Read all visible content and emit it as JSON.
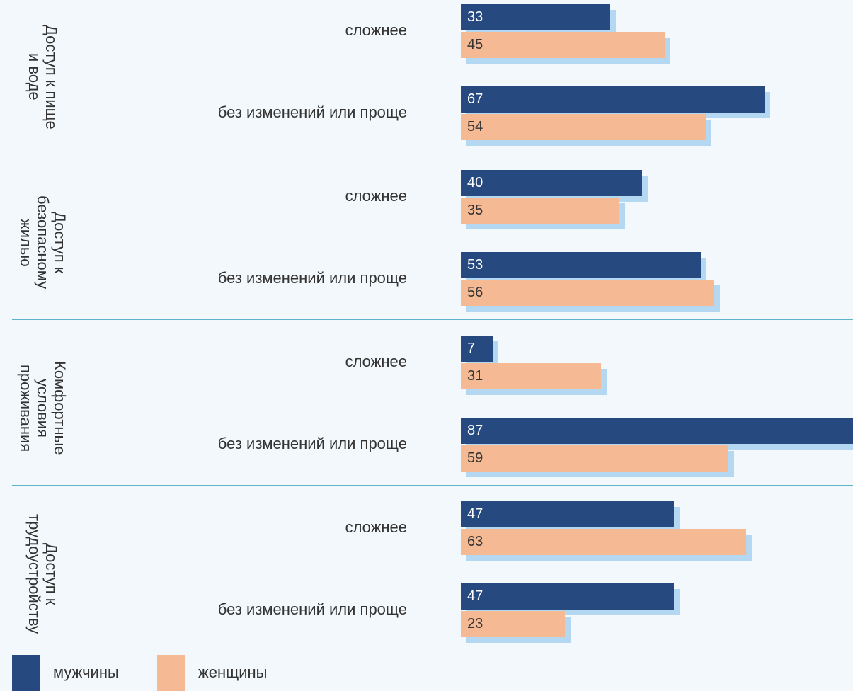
{
  "chart_data": {
    "type": "bar",
    "orientation": "horizontal",
    "groups": [
      "Доступ к пище\nи воде",
      "Доступ к\nбезопасному\nжилью",
      "Комфортные\nусловия\nпроживания",
      "Доступ к\nтрудоустройству"
    ],
    "categories": [
      "сложнее",
      "без изменений или проще",
      "сложнее",
      "без изменений или проще",
      "сложнее",
      "без изменений или проще",
      "сложнее",
      "без изменений или проще"
    ],
    "series": [
      {
        "name": "мужчины",
        "color": "#264a80",
        "values": [
          33,
          67,
          40,
          53,
          7,
          87,
          47,
          47
        ]
      },
      {
        "name": "женщины",
        "color": "#f5b994",
        "values": [
          45,
          54,
          35,
          56,
          31,
          59,
          63,
          23
        ]
      }
    ],
    "shadow_color": "#b5d8f2",
    "legend": "bottom-left"
  }
}
